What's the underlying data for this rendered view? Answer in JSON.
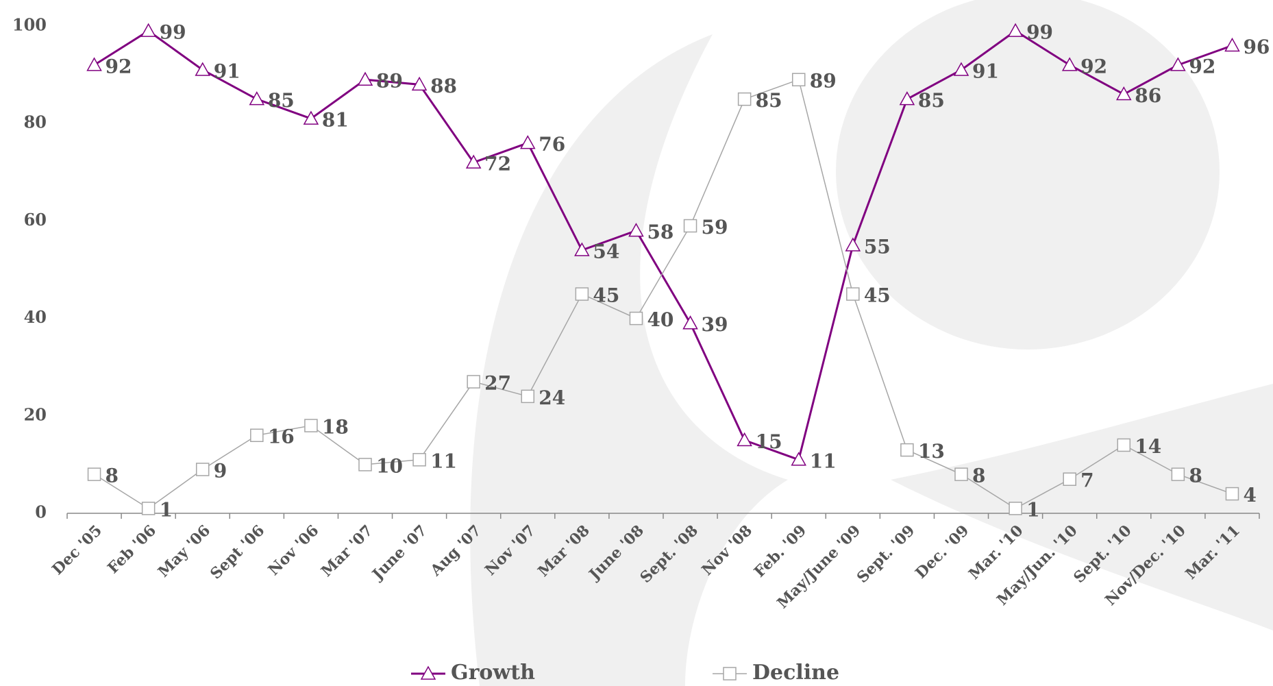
{
  "chart_data": {
    "type": "line",
    "categories": [
      "Dec '05",
      "Feb '06",
      "May '06",
      "Sept '06",
      "Nov '06",
      "Mar '07",
      "June '07",
      "Aug '07",
      "Nov '07",
      "Mar '08",
      "June '08",
      "Sept. '08",
      "Nov '08",
      "Feb. '09",
      "May/June '09",
      "Sept. '09",
      "Dec. '09",
      "Mar. '10",
      "May/Jun. '10",
      "Sept. '10",
      "Nov/Dec. '10",
      "Mar. '11"
    ],
    "series": [
      {
        "name": "Growth",
        "color": "#800080",
        "marker": "triangle",
        "values": [
          92,
          99,
          91,
          85,
          81,
          89,
          88,
          72,
          76,
          54,
          58,
          39,
          15,
          11,
          55,
          85,
          91,
          99,
          92,
          86,
          92,
          96
        ]
      },
      {
        "name": "Decline",
        "color": "#a6a6a6",
        "marker": "square",
        "values": [
          8,
          1,
          9,
          16,
          18,
          10,
          11,
          27,
          24,
          45,
          40,
          59,
          85,
          89,
          45,
          13,
          8,
          1,
          7,
          14,
          8,
          4
        ]
      }
    ],
    "ylim": [
      0,
      100
    ],
    "yticks": [
      0,
      20,
      40,
      60,
      80,
      100
    ],
    "grid": false,
    "legend": "bottom"
  }
}
